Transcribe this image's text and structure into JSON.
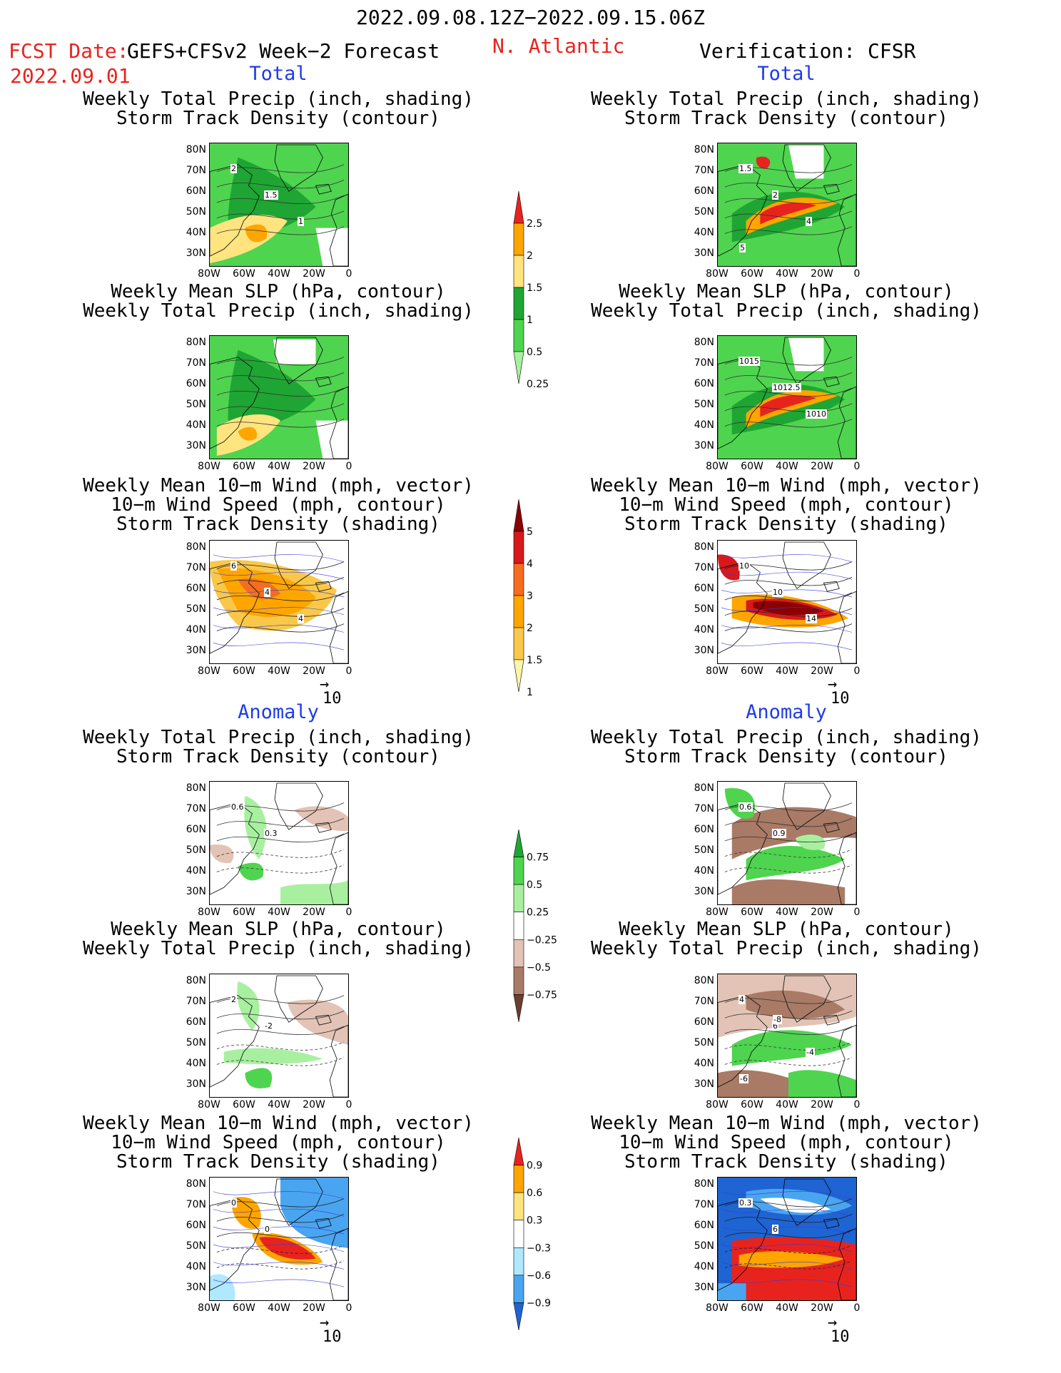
{
  "header": {
    "date_range": "2022.09.08.12Z−2022.09.15.06Z",
    "fcst_label": "FCST Date:",
    "fcst_model": "GEFS+CFSv2 Week−2 Forecast",
    "fcst_date": "2022.09.01",
    "region": "N. Atlantic",
    "verification": "Verification: CFSR"
  },
  "sections": {
    "total": "Total",
    "anomaly": "Anomaly"
  },
  "titles": {
    "precip_track": "Weekly Total Precip (inch, shading)\nStorm Track Density (contour)",
    "slp_precip": "Weekly Mean SLP (hPa, contour)\nWeekly Total Precip (inch, shading)",
    "wind_track": "Weekly Mean 10−m Wind (mph, vector)\n10−m Wind Speed (mph, contour)\nStorm Track Density (shading)"
  },
  "axes": {
    "lat_ticks": [
      "80N",
      "70N",
      "60N",
      "50N",
      "40N",
      "30N"
    ],
    "lon_ticks": [
      "80W",
      "60W",
      "40W",
      "20W",
      "0"
    ]
  },
  "vector_ref": "10",
  "colorbars": {
    "total_precip": {
      "labels": [
        "2.5",
        "2",
        "1.5",
        "1",
        "0.5",
        "0.25"
      ],
      "colors": [
        "#e8231e",
        "#ffa500",
        "#ffe480",
        "#1fa533",
        "#4fd44f",
        "#a8f0a0"
      ]
    },
    "total_track": {
      "labels": [
        "5",
        "4",
        "3",
        "2",
        "1.5",
        "1"
      ],
      "colors": [
        "#8b0000",
        "#d7191c",
        "#f46d20",
        "#ffa500",
        "#f9c84a",
        "#fff5a8"
      ]
    },
    "anom_precip": {
      "labels": [
        "0.75",
        "0.5",
        "0.25",
        "−0.25",
        "−0.5",
        "−0.75"
      ],
      "colors": [
        "#1fa533",
        "#4fd44f",
        "#a8f0a0",
        "#ffffff",
        "#e2c3b5",
        "#a97a66",
        "#6b3f2d"
      ]
    },
    "anom_track": {
      "labels": [
        "0.9",
        "0.6",
        "0.3",
        "−0.3",
        "−0.6",
        "−0.9"
      ],
      "colors": [
        "#e8231e",
        "#ffa500",
        "#ffe480",
        "#ffffff",
        "#b0e8ff",
        "#4aa5f0",
        "#1e64d2"
      ]
    }
  },
  "panel_annotations": {
    "fc_precip_total": [
      "2",
      "1.5",
      "1"
    ],
    "ob_precip_total": [
      "1.5",
      "2",
      "4",
      "5"
    ],
    "ob_slp_total": [
      "1015",
      "1012.5",
      "1010"
    ],
    "fc_wind_total": [
      "6",
      "4",
      "4"
    ],
    "ob_wind_total": [
      "10",
      "10",
      "14"
    ],
    "fc_precip_anom": [
      "0.6",
      "0.3"
    ],
    "ob_precip_anom": [
      "0.6",
      "0.9"
    ],
    "fc_slp_anom": [
      "2",
      "-2"
    ],
    "ob_slp_anom": [
      "4",
      "6",
      "-4",
      "-6",
      "-8"
    ],
    "fc_wind_anom": [
      "0",
      "0"
    ],
    "ob_wind_anom": [
      "0.3",
      "6"
    ]
  }
}
